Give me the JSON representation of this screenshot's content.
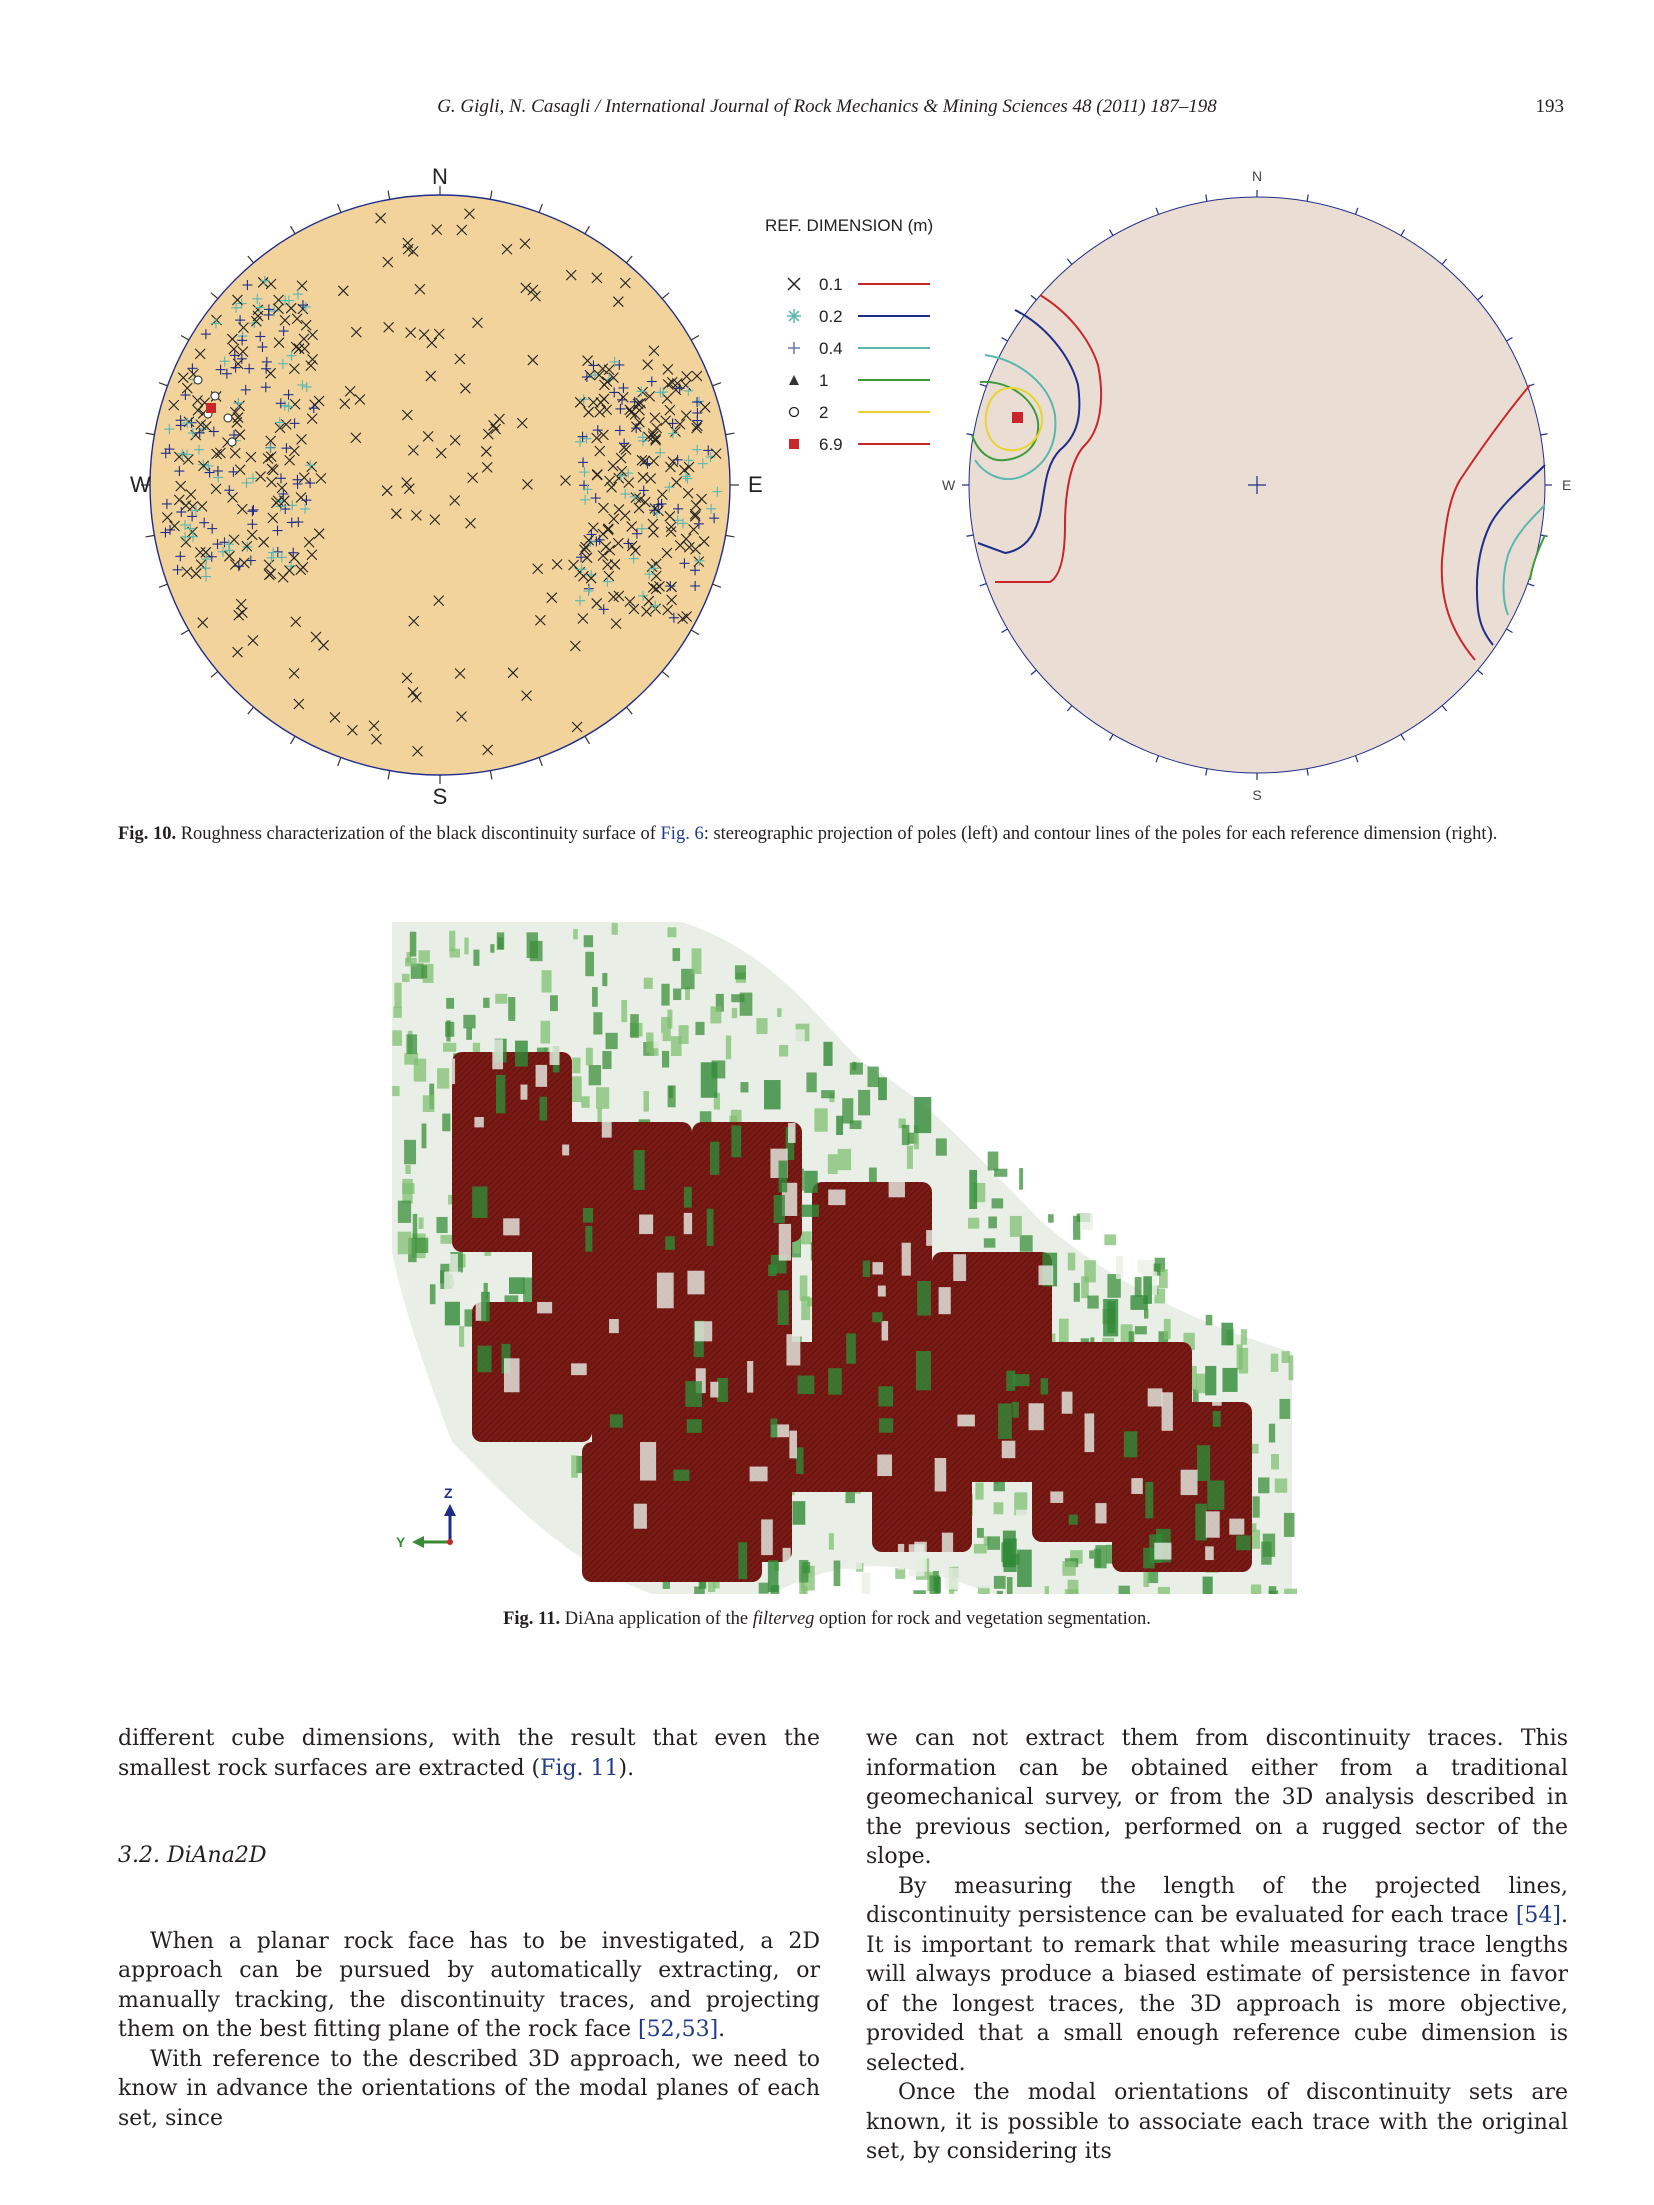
{
  "header": {
    "running_title": "G. Gigli, N. Casagli / International Journal of Rock Mechanics & Mining Sciences 48 (2011) 187–198",
    "page_number": "193"
  },
  "fig10": {
    "left_plot": {
      "north": "N",
      "south": "S",
      "east": "E",
      "west": "W"
    },
    "legend": {
      "title": "REF. DIMENSION (m)",
      "entries": [
        {
          "symbol": "cross",
          "label": "0.1",
          "line_color": "#c8262b"
        },
        {
          "symbol": "asterisk",
          "label": "0.2",
          "line_color": "#1f2d8a"
        },
        {
          "symbol": "plus",
          "label": "0.4",
          "line_color": "#5ab7b0"
        },
        {
          "symbol": "triangle",
          "label": "1",
          "line_color": "#3d9a3a"
        },
        {
          "symbol": "circle",
          "label": "2",
          "line_color": "#e8d431"
        },
        {
          "symbol": "square",
          "label": "6.9",
          "line_color": "#c8262b"
        }
      ]
    },
    "right_plot": {
      "north": "N",
      "south": "S",
      "east": "E",
      "west": "W"
    },
    "caption_label": "Fig. 10.",
    "caption_pre": " Roughness characterization of the black discontinuity surface of ",
    "caption_link": "Fig. 6",
    "caption_post": ": stereographic projection of poles (left) and contour lines of the poles for each reference dimension (right)."
  },
  "fig11": {
    "axis_z": "Z",
    "axis_y": "Y",
    "caption_label": "Fig. 11.",
    "caption_pre": " DiAna application of the ",
    "caption_em": "filterveg",
    "caption_post": " option for rock and vegetation segmentation."
  },
  "left_column": {
    "p1_pre": "different cube dimensions, with the result that even the smallest rock surfaces are extracted (",
    "p1_link": "Fig. 11",
    "p1_post": ").",
    "section_title": "3.2.  DiAna2D",
    "p2_pre": "When a planar rock face has to be investigated, a 2D approach can be pursued by automatically extracting, or manually tracking, the discontinuity traces, and projecting them on the best fitting plane of the rock face ",
    "p2_link": "[52,53]",
    "p2_post": ".",
    "p3": "With reference to the described 3D approach, we need to know in advance the orientations of the modal planes of each set, since"
  },
  "right_column": {
    "p1": "we can not extract them from discontinuity traces. This information can be obtained either from a traditional geomechanical survey, or from the 3D analysis described in the previous section, performed on a rugged sector of the slope.",
    "p2_pre": "By measuring the length of the projected lines, discontinuity persistence can be evaluated for each trace ",
    "p2_link": "[54]",
    "p2_post": ". It is important to remark that while measuring trace lengths will always produce a biased estimate of persistence in favor of the longest traces, the 3D approach is more objective, provided that a small enough reference cube dimension is selected.",
    "p3": "Once the modal orientations of discontinuity sets are known, it is possible to associate each trace with the original set, by considering its"
  }
}
